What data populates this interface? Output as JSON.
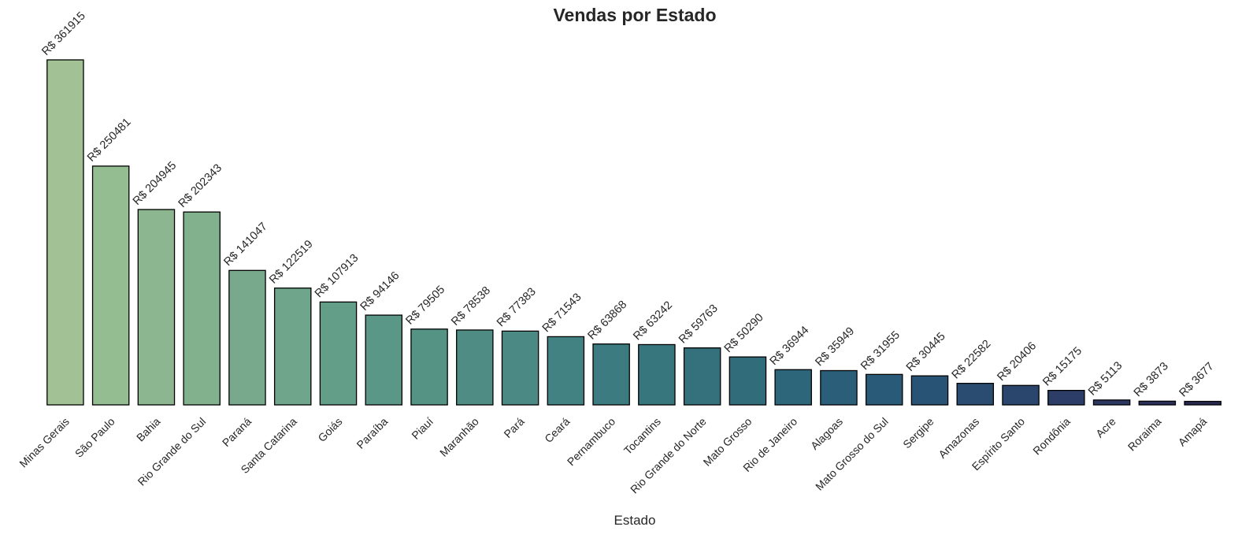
{
  "chart_data": {
    "type": "bar",
    "title": "Vendas por Estado",
    "xlabel": "Estado",
    "ylabel": "",
    "ylim": [
      0,
      361915
    ],
    "grid": false,
    "legend": "none",
    "value_prefix": "R$ ",
    "categories": [
      "Minas Gerais",
      "São Paulo",
      "Bahia",
      "Rio Grande do Sul",
      "Paraná",
      "Santa Catarina",
      "Goiás",
      "Paraíba",
      "Piauí",
      "Maranhão",
      "Pará",
      "Ceará",
      "Pernambuco",
      "Tocantins",
      "Rio Grande do Norte",
      "Mato Grosso",
      "Rio de Janeiro",
      "Alagoas",
      "Mato Grosso do Sul",
      "Sergipe",
      "Amazonas",
      "Espírito Santo",
      "Rondônia",
      "Acre",
      "Roraima",
      "Amapá"
    ],
    "values": [
      361915,
      250481,
      204945,
      202343,
      141047,
      122519,
      107913,
      94146,
      79505,
      78538,
      77383,
      71543,
      63868,
      63242,
      59763,
      50290,
      36944,
      35949,
      31955,
      30445,
      22582,
      20406,
      15175,
      5113,
      3873,
      3677
    ],
    "data_labels": [
      "R$ 361915",
      "R$ 250481",
      "R$ 204945",
      "R$ 202343",
      "R$ 141047",
      "R$ 122519",
      "R$ 107913",
      "R$ 94146",
      "R$ 79505",
      "R$ 78538",
      "R$ 77383",
      "R$ 71543",
      "R$ 63868",
      "R$ 63242",
      "R$ 59763",
      "R$ 50290",
      "R$ 36944",
      "R$ 35949",
      "R$ 31955",
      "R$ 30445",
      "R$ 22582",
      "R$ 20406",
      "R$ 15175",
      "R$ 5113",
      "R$ 3873",
      "R$ 3677"
    ],
    "colors": [
      "#a2c295",
      "#95bd92",
      "#8bb68f",
      "#82b18e",
      "#79a98c",
      "#6fa58a",
      "#639f88",
      "#5b9787",
      "#559385",
      "#4f8d84",
      "#4a8984",
      "#428282",
      "#3c7c80",
      "#38767e",
      "#35717c",
      "#316c7b",
      "#2d667b",
      "#2b5f79",
      "#295a77",
      "#285374",
      "#2a4c70",
      "#2b466c",
      "#2c3e67",
      "#2c3761",
      "#2a2f59",
      "#272852"
    ]
  }
}
